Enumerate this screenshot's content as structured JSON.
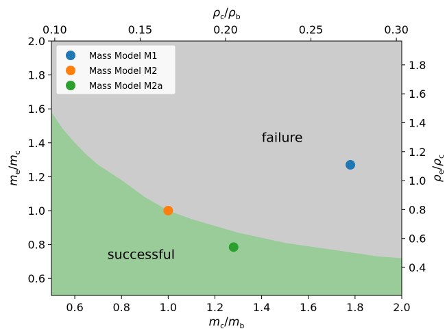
{
  "chart_data": {
    "type": "scatter",
    "x": {
      "label_main": "m",
      "label_main_sub": "c",
      "label_den": "m",
      "label_den_sub": "b",
      "lim": [
        0.5,
        2.0
      ],
      "ticks": [
        "0.6",
        "0.8",
        "1.0",
        "1.2",
        "1.4",
        "1.6",
        "1.8",
        "2.0"
      ],
      "tick_values": [
        0.6,
        0.8,
        1.0,
        1.2,
        1.4,
        1.6,
        1.8,
        2.0
      ]
    },
    "y": {
      "label_main": "m",
      "label_main_sub": "e",
      "label_den": "m",
      "label_den_sub": "c",
      "lim": [
        0.5,
        2.0
      ],
      "ticks": [
        "0.6",
        "0.8",
        "1.0",
        "1.2",
        "1.4",
        "1.6",
        "1.8",
        "2.0"
      ],
      "tick_values": [
        0.6,
        0.8,
        1.0,
        1.2,
        1.4,
        1.6,
        1.8,
        2.0
      ]
    },
    "x_top": {
      "label_main": "ρ",
      "label_main_sub": "c",
      "label_den": "ρ",
      "label_den_sub": "b",
      "ticks": [
        "0.10",
        "0.15",
        "0.20",
        "0.25",
        "0.30"
      ],
      "tick_values": [
        0.1,
        0.15,
        0.2,
        0.25,
        0.3
      ]
    },
    "y_right": {
      "label_main": "ρ",
      "label_main_sub": "e",
      "label_den": "ρ",
      "label_den_sub": "c",
      "ticks": [
        "0.4",
        "0.6",
        "0.8",
        "1.0",
        "1.2",
        "1.4",
        "1.6",
        "1.8"
      ],
      "tick_values": [
        0.4,
        0.6,
        0.8,
        1.0,
        1.2,
        1.4,
        1.6,
        1.8
      ]
    },
    "boundary": {
      "x": [
        0.5,
        0.55,
        0.6,
        0.65,
        0.7,
        0.8,
        0.9,
        1.0,
        1.1,
        1.2,
        1.3,
        1.4,
        1.5,
        1.6,
        1.7,
        1.8,
        1.9,
        2.0
      ],
      "y": [
        1.58,
        1.48,
        1.4,
        1.33,
        1.27,
        1.18,
        1.08,
        1.0,
        0.95,
        0.91,
        0.87,
        0.84,
        0.81,
        0.79,
        0.77,
        0.75,
        0.73,
        0.72
      ]
    },
    "regions": {
      "success": "successful",
      "failure": "failure"
    },
    "series": [
      {
        "name": "Mass Model M1",
        "x": [
          1.78
        ],
        "y": [
          1.27
        ],
        "color": "#1f77b4"
      },
      {
        "name": "Mass Model M2",
        "x": [
          1.0
        ],
        "y": [
          1.0
        ],
        "color": "#ff7f0e"
      },
      {
        "name": "Mass Model M2a",
        "x": [
          1.28
        ],
        "y": [
          0.785
        ],
        "color": "#2ca02c"
      }
    ],
    "colors": {
      "failure_fill": "#cccccc",
      "success_fill": "#99cc99"
    },
    "legend": "top-left",
    "grid": false
  }
}
